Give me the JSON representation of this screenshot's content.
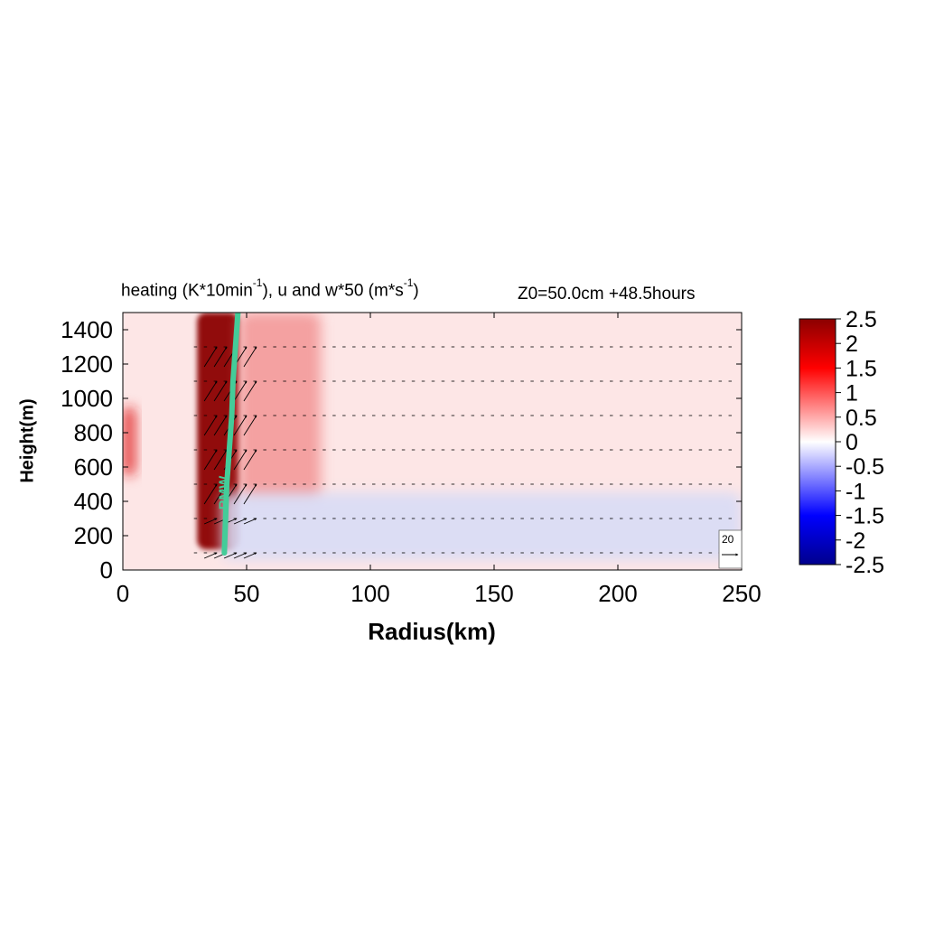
{
  "title": {
    "heating_label": "heating (K*10min",
    "heating_exp": "-1",
    "wind_label": "), u and w*50 (m*s",
    "wind_exp": "-1",
    "close": ")",
    "run_info": "Z0=50.0cm  +48.5hours"
  },
  "chart_data": {
    "type": "heatmap",
    "title": "heating (K*10min-1), u and w*50 (m*s-1)",
    "subtitle": "Z0=50.0cm  +48.5hours",
    "xlabel": "Radius(km)",
    "ylabel": "Height(m)",
    "xlim": [
      0,
      250
    ],
    "ylim": [
      0,
      1500
    ],
    "xticks": [
      0,
      50,
      100,
      150,
      200,
      250
    ],
    "yticks": [
      0,
      200,
      400,
      600,
      800,
      1000,
      1200,
      1400
    ],
    "colorbar": {
      "range": [
        -2.5,
        2.5
      ],
      "ticks": [
        "2.5",
        "2",
        "1.5",
        "1",
        "0.5",
        "0",
        "-0.5",
        "-1",
        "-1.5",
        "-2",
        "-2.5"
      ],
      "colors": {
        "min": "#00008c",
        "neg": "#0000ff",
        "zero": "#ffffff",
        "pos": "#ff0000",
        "max": "#8b0000"
      }
    },
    "heating_features": [
      {
        "name": "eyewall heating tower",
        "radius_km": [
          30,
          47
        ],
        "height_m": [
          120,
          1500
        ],
        "peak": 2.5
      },
      {
        "name": "outer warm band",
        "radius_km": [
          47,
          80
        ],
        "height_m": [
          400,
          1500
        ],
        "peak": 0.8
      },
      {
        "name": "inner core warm spot",
        "radius_km": [
          0,
          5
        ],
        "height_m": [
          550,
          950
        ],
        "peak": 1.6
      },
      {
        "name": "boundary layer cooling",
        "radius_km": [
          40,
          250
        ],
        "height_m": [
          60,
          450
        ],
        "peak": -0.4
      }
    ],
    "vector_levels_m": [
      100,
      300,
      500,
      700,
      900,
      1100,
      1300
    ],
    "reference_vector": {
      "label": "20"
    },
    "rmw_line": {
      "label": "RMW",
      "color": "#44cc99",
      "points": [
        [
          41,
          100
        ],
        [
          41.5,
          300
        ],
        [
          42,
          500
        ],
        [
          43,
          700
        ],
        [
          44,
          900
        ],
        [
          44.5,
          1100
        ],
        [
          45.5,
          1300
        ],
        [
          46.5,
          1500
        ]
      ]
    }
  }
}
